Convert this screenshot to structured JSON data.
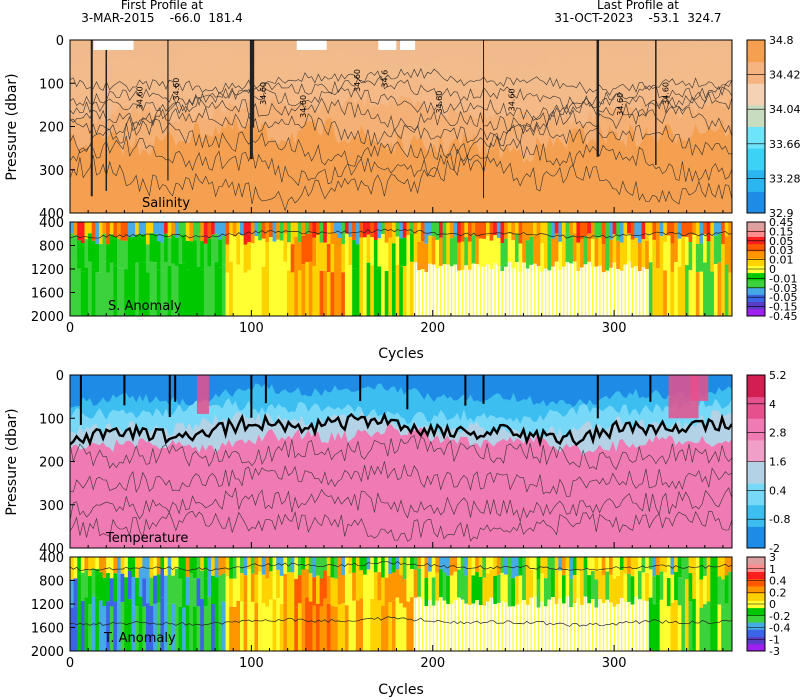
{
  "header": {
    "first_label": "First Profile at",
    "first_value": "3-MAR-2015    -66.0  181.4",
    "last_label": "Last Profile at",
    "last_value": "31-OCT-2023    -53.1  324.7"
  },
  "colors": {
    "salinity": [
      "#1e8ce6",
      "#2ab4f0",
      "#3cd2f5",
      "#6ee4fa",
      "#c8dcc0",
      "#f5d2b4",
      "#f5b480",
      "#f5a050"
    ],
    "anomaly": [
      "#a020f0",
      "#5a3cc8",
      "#3c64e6",
      "#46aae6",
      "#3cd23c",
      "#00c800",
      "#ffff32",
      "#ffd200",
      "#ff9600",
      "#ff5a00",
      "#ff1e1e",
      "#ff8c8c",
      "#dca0a0"
    ],
    "temperature": [
      "#1e8ce6",
      "#3cbef0",
      "#78d8f8",
      "#b4d2e6",
      "#f0a0c8",
      "#f07ab4",
      "#e6508c",
      "#d21e50"
    ]
  },
  "chart_data": [
    {
      "panel": "salinity",
      "type": "heatmap",
      "ylabel": "Pressure (dbar)",
      "xlim": [
        0,
        365
      ],
      "ylim": [
        400,
        0
      ],
      "yticks": [
        0,
        100,
        200,
        300,
        400
      ],
      "annotation": "Salinity",
      "colorbar": [
        32.9,
        33.28,
        33.66,
        34.04,
        34.42,
        34.8
      ],
      "contour_labels": [
        "34.60",
        "34.60",
        "34.60",
        "34.60",
        "34.60",
        "34.6",
        "34.60",
        "34.60",
        "34.60",
        "34.60"
      ]
    },
    {
      "panel": "salinity-anomaly",
      "type": "heatmap",
      "xlabel": "Cycles",
      "xlim": [
        0,
        365
      ],
      "ylim": [
        2000,
        400
      ],
      "xticks": [
        0,
        100,
        200,
        300
      ],
      "yticks": [
        400,
        800,
        1200,
        1600,
        2000
      ],
      "annotation": "S. Anomaly",
      "colorbar": [
        -0.45,
        -0.15,
        -0.05,
        -0.03,
        -0.01,
        0,
        0.01,
        0.03,
        0.05,
        0.15,
        0.45
      ]
    },
    {
      "panel": "temperature",
      "type": "heatmap",
      "ylabel": "Pressure (dbar)",
      "xlim": [
        0,
        365
      ],
      "ylim": [
        400,
        0
      ],
      "yticks": [
        0,
        100,
        200,
        300,
        400
      ],
      "annotation": "Temperature",
      "colorbar": [
        -2,
        -0.8,
        0.4,
        1.6,
        2.8,
        4,
        5.2
      ]
    },
    {
      "panel": "temperature-anomaly",
      "type": "heatmap",
      "xlabel": "Cycles",
      "xlim": [
        0,
        365
      ],
      "ylim": [
        2000,
        400
      ],
      "xticks": [
        0,
        100,
        200,
        300
      ],
      "yticks": [
        400,
        800,
        1200,
        1600,
        2000
      ],
      "annotation": "T. Anomaly",
      "colorbar": [
        -3,
        -1,
        -0.4,
        -0.2,
        0,
        0.2,
        0.4,
        1,
        3
      ]
    }
  ]
}
